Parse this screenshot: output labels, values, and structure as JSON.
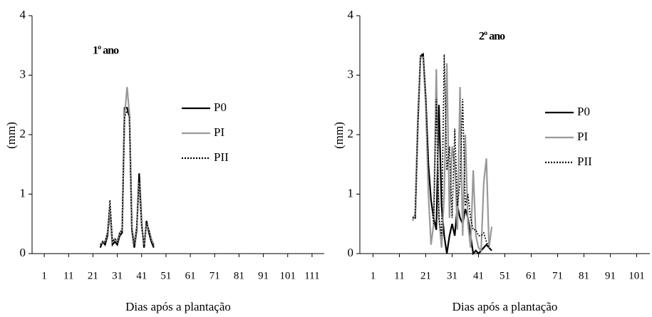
{
  "chart_data": [
    {
      "type": "line",
      "title": "1º ano",
      "y_label": "(mm)",
      "x_label": "Dias após a plantação",
      "x": [
        24,
        25,
        26,
        27,
        28,
        29,
        30,
        31,
        32,
        33,
        34,
        35,
        36,
        37,
        38,
        39,
        40,
        41,
        42,
        43,
        44,
        45,
        46
      ],
      "series": [
        {
          "name": "P0",
          "color": "#000000",
          "dashed": false,
          "values": [
            0.1,
            0.2,
            0.15,
            0.3,
            0.75,
            0.15,
            0.2,
            0.15,
            0.3,
            0.35,
            2.45,
            2.45,
            2.3,
            0.4,
            0.1,
            0.4,
            1.35,
            0.5,
            0.1,
            0.55,
            0.35,
            0.2,
            0.1
          ]
        },
        {
          "name": "PI",
          "color": "#999999",
          "dashed": false,
          "values": [
            0.15,
            0.2,
            0.2,
            0.35,
            0.8,
            0.2,
            0.25,
            0.2,
            0.35,
            0.4,
            2.3,
            2.8,
            2.35,
            0.45,
            0.15,
            0.45,
            1.2,
            0.45,
            0.15,
            0.5,
            0.4,
            0.25,
            0.15
          ]
        },
        {
          "name": "PII",
          "color": "#000000",
          "dashed": true,
          "values": [
            0.15,
            0.2,
            0.2,
            0.35,
            0.9,
            0.2,
            0.25,
            0.2,
            0.35,
            0.4,
            2.3,
            2.4,
            2.3,
            0.4,
            0.15,
            0.45,
            1.3,
            0.45,
            0.15,
            0.5,
            0.4,
            0.2,
            0.15
          ]
        }
      ],
      "xlim": [
        -4,
        116
      ],
      "ylim": [
        0,
        4
      ],
      "xticks": [
        1,
        11,
        21,
        31,
        41,
        51,
        61,
        71,
        81,
        91,
        101,
        111
      ],
      "yticks": [
        0,
        1,
        2,
        3,
        4
      ]
    },
    {
      "type": "line",
      "title": "2º ano",
      "y_label": "(mm)",
      "x_label": "Dias após a plantação",
      "x": [
        16,
        17,
        18,
        19,
        20,
        21,
        22,
        23,
        24,
        25,
        26,
        27,
        28,
        29,
        30,
        31,
        32,
        33,
        34,
        35,
        36,
        37,
        38,
        39,
        40,
        41,
        42,
        43,
        44,
        45,
        46
      ],
      "series": [
        {
          "name": "P0",
          "color": "#000000",
          "dashed": false,
          "values": [
            0.6,
            0.6,
            2.2,
            3.3,
            3.35,
            2.6,
            1.5,
            0.9,
            0.6,
            0.4,
            2.5,
            0.8,
            0.3,
            0.0,
            0.3,
            0.5,
            0.3,
            0.8,
            0.6,
            0.5,
            0.75,
            0.6,
            0.3,
            0.0,
            0.05,
            0.0,
            0.05,
            0.1,
            0.15,
            0.1,
            0.05
          ]
        },
        {
          "name": "PI",
          "color": "#999999",
          "dashed": false,
          "values": [
            0.55,
            0.65,
            2.3,
            3.3,
            3.3,
            2.5,
            1.0,
            0.15,
            0.5,
            3.1,
            0.6,
            0.1,
            1.0,
            3.2,
            0.6,
            1.8,
            1.5,
            0.4,
            2.8,
            0.3,
            2.0,
            0.5,
            0.1,
            1.4,
            0.3,
            0.1,
            0.05,
            1.2,
            1.6,
            0.1,
            0.45
          ]
        },
        {
          "name": "PII",
          "color": "#000000",
          "dashed": true,
          "values": [
            0.6,
            0.65,
            2.2,
            3.35,
            3.35,
            2.6,
            1.5,
            0.9,
            0.5,
            2.6,
            0.6,
            0.3,
            3.35,
            1.4,
            1.8,
            0.6,
            2.1,
            0.8,
            1.2,
            2.6,
            0.8,
            1.0,
            0.6,
            0.4,
            0.4,
            0.3,
            0.3,
            0.35,
            0.2,
            0.1,
            null
          ]
        }
      ],
      "xlim": [
        -4,
        106
      ],
      "ylim": [
        0,
        4
      ],
      "xticks": [
        1,
        11,
        21,
        31,
        41,
        51,
        61,
        71,
        81,
        91,
        101
      ],
      "yticks": [
        0,
        1,
        2,
        3,
        4
      ]
    }
  ]
}
